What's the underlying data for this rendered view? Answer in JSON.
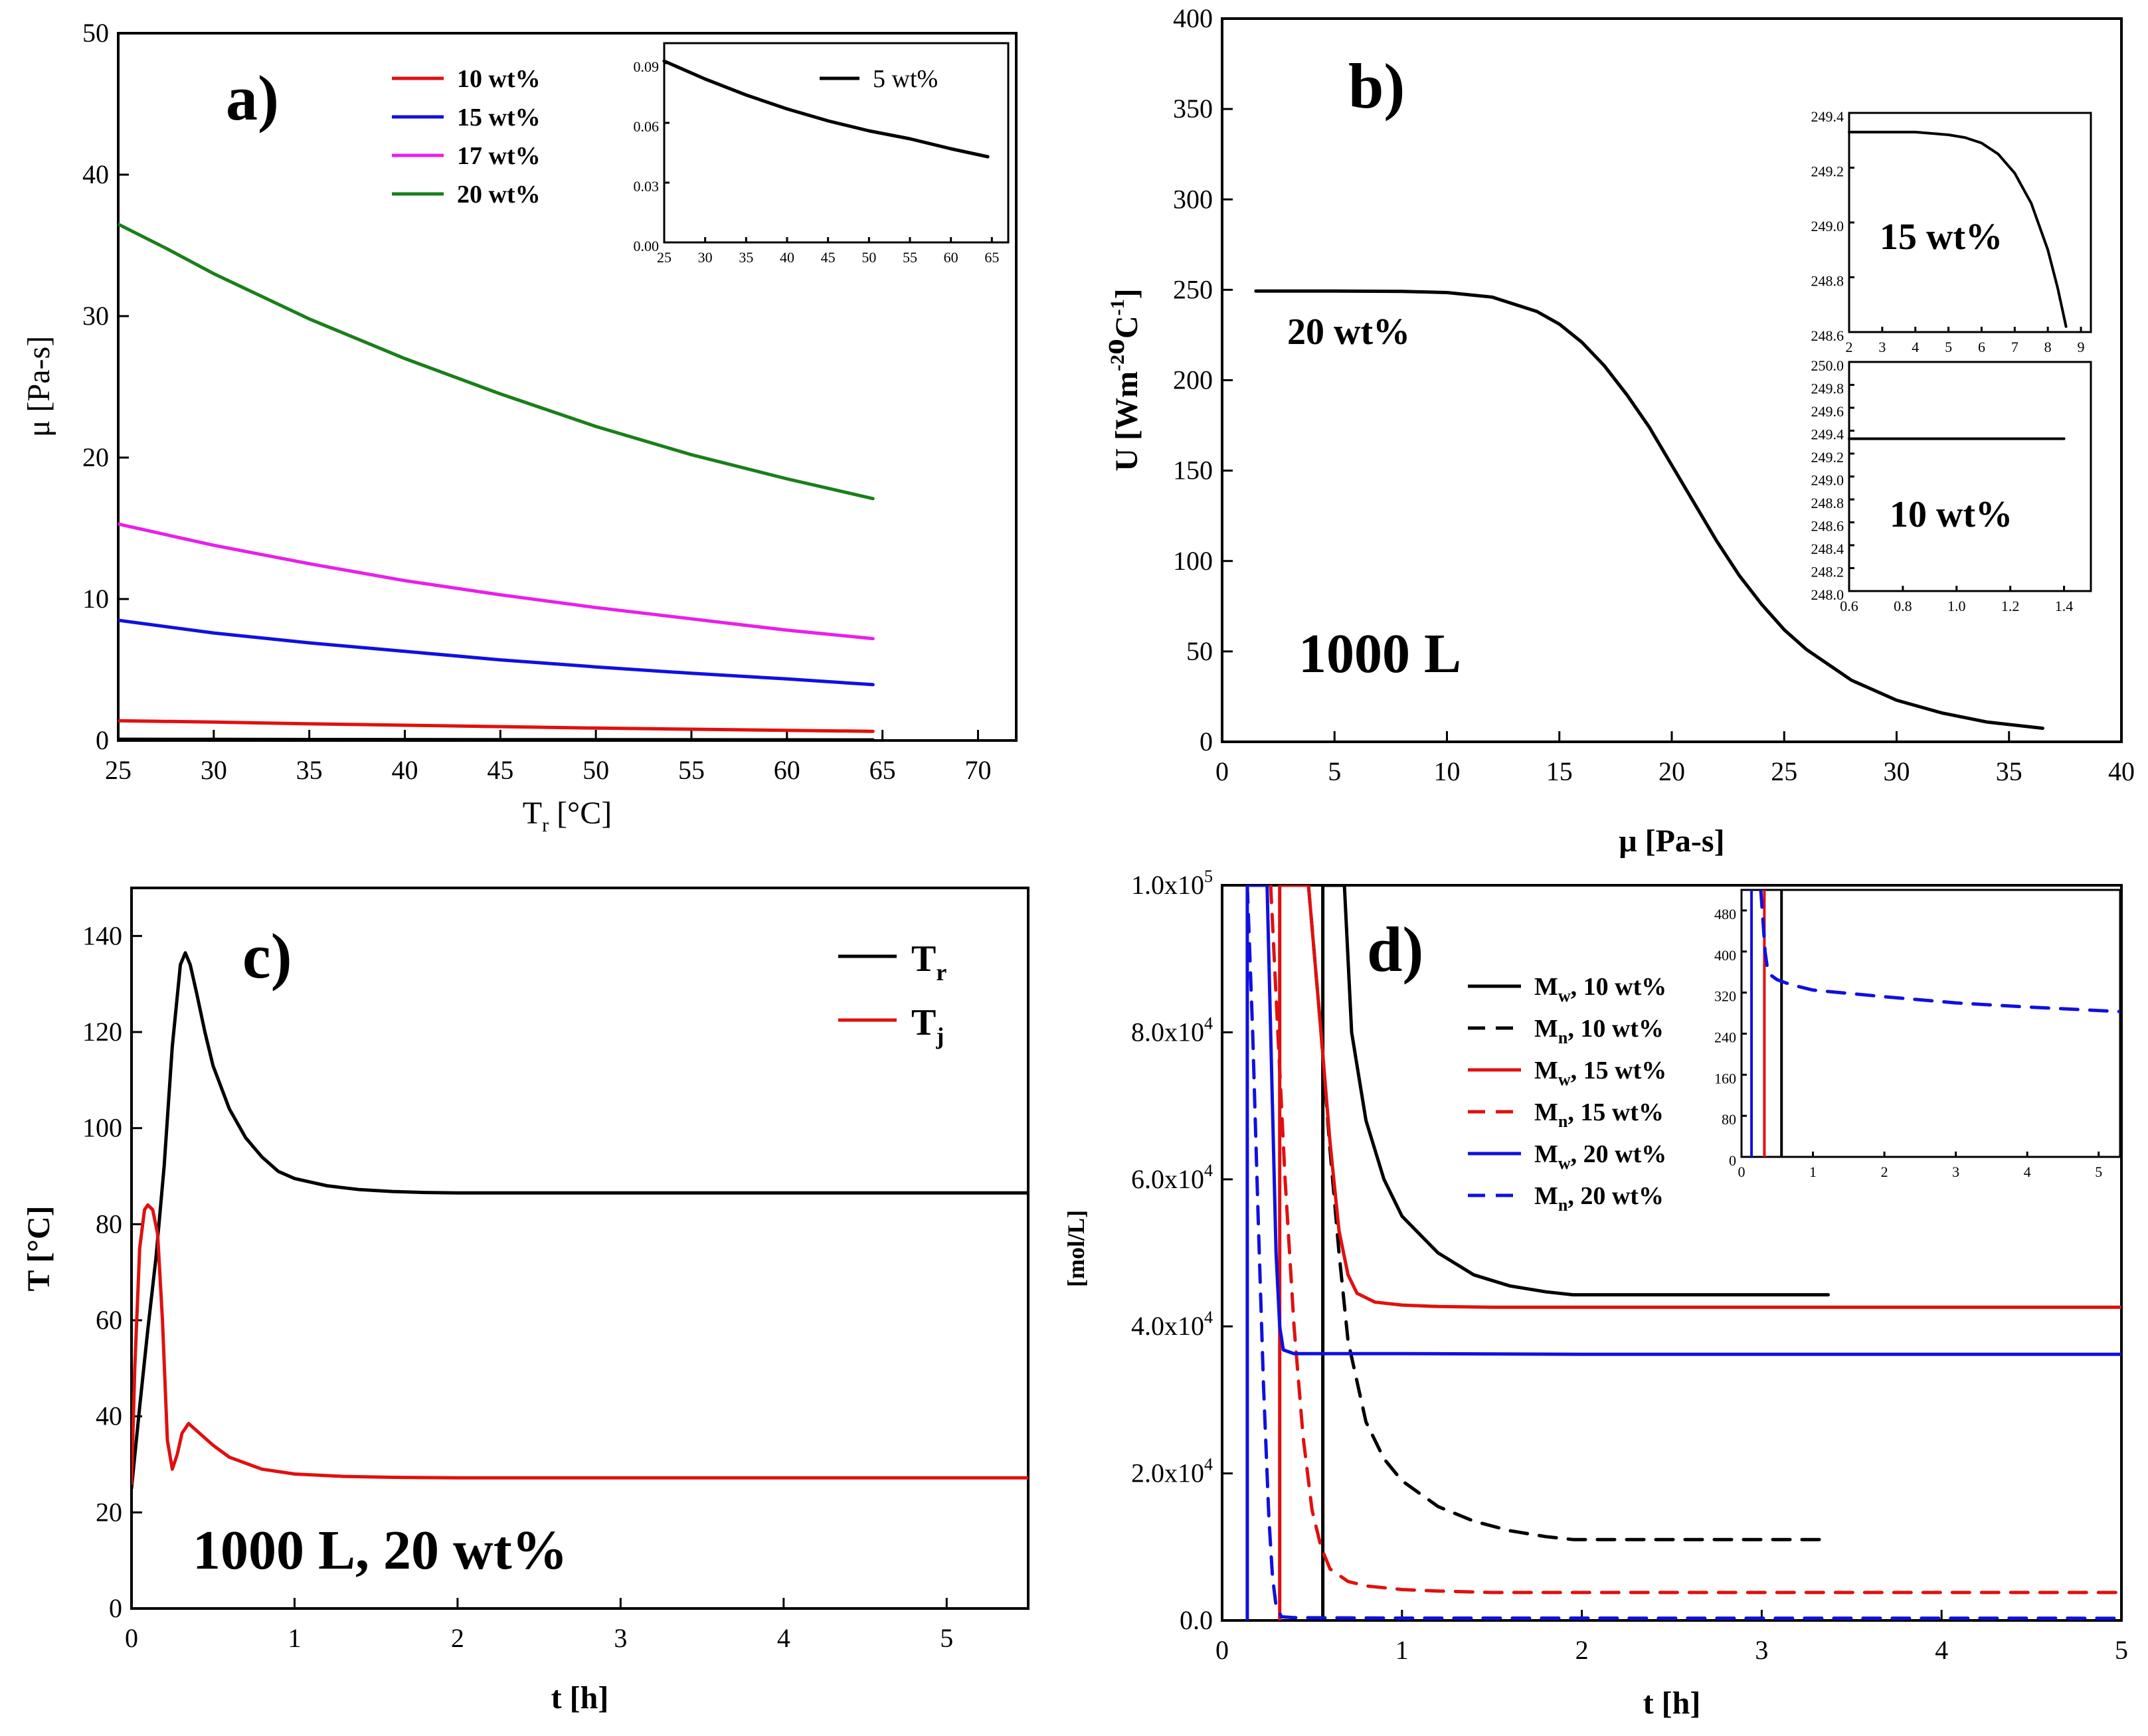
{
  "chart_data": [
    {
      "panel": "a)",
      "type": "line",
      "xlabel_main": "T",
      "xlabel_sub": "r",
      "xlabel_unit": " [°C]",
      "ylabel": "μ [Pa-s]",
      "xlim": [
        25,
        72
      ],
      "ylim": [
        0,
        50
      ],
      "xticks": [
        25,
        30,
        35,
        40,
        45,
        50,
        55,
        60,
        65,
        70
      ],
      "yticks": [
        0,
        10,
        20,
        30,
        40,
        50
      ],
      "series": [
        {
          "name": "10 wt%",
          "color": "#e01010",
          "x": [
            25,
            30,
            35,
            40,
            45,
            50,
            55,
            60,
            64.5
          ],
          "y": [
            1.4,
            1.3,
            1.18,
            1.08,
            0.98,
            0.88,
            0.8,
            0.72,
            0.65
          ]
        },
        {
          "name": "15 wt%",
          "color": "#1010e0",
          "x": [
            25,
            30,
            35,
            40,
            45,
            50,
            55,
            60,
            64.5
          ],
          "y": [
            8.5,
            7.6,
            6.9,
            6.3,
            5.7,
            5.2,
            4.75,
            4.35,
            3.95
          ]
        },
        {
          "name": "17 wt%",
          "color": "#e820e8",
          "x": [
            25,
            30,
            35,
            40,
            45,
            50,
            55,
            60,
            64.5
          ],
          "y": [
            15.3,
            13.8,
            12.5,
            11.3,
            10.3,
            9.4,
            8.6,
            7.8,
            7.2
          ]
        },
        {
          "name": "20 wt%",
          "color": "#1a7f1a",
          "x": [
            25,
            27.5,
            30,
            35,
            40,
            45,
            50,
            55,
            60,
            64.5
          ],
          "y": [
            36.5,
            34.8,
            33.0,
            29.8,
            27.0,
            24.5,
            22.2,
            20.2,
            18.5,
            17.1
          ]
        },
        {
          "name": "5 wt% (main)",
          "legend": false,
          "color": "#000000",
          "x": [
            25,
            30,
            35,
            40,
            45,
            50,
            55,
            60,
            64.5
          ],
          "y": [
            0.09,
            0.08,
            0.07,
            0.065,
            0.06,
            0.055,
            0.05,
            0.046,
            0.042
          ]
        }
      ],
      "inset": {
        "legend": "5 wt%",
        "xlim": [
          25,
          67
        ],
        "ylim": [
          0,
          0.1
        ],
        "xticks": [
          25,
          30,
          35,
          40,
          45,
          50,
          55,
          60,
          65
        ],
        "yticks": [
          "0.00",
          "0.03",
          "0.06",
          "0.09"
        ],
        "ytick_values": [
          0,
          0.03,
          0.06,
          0.09
        ],
        "series": {
          "name": "5 wt%",
          "color": "#000000",
          "x": [
            25,
            30,
            35,
            40,
            45,
            50,
            55,
            60,
            64.5
          ],
          "y": [
            0.091,
            0.082,
            0.074,
            0.067,
            0.061,
            0.056,
            0.052,
            0.047,
            0.043
          ]
        }
      }
    },
    {
      "panel": "b)",
      "type": "line",
      "xlabel": "μ [Pa-s]",
      "ylabel_main": "U [Wm",
      "ylabel_sup1": "-2",
      "ylabel_mid": "o",
      "ylabel_c": "C",
      "ylabel_sup2": "-1",
      "ylabel_end": "]",
      "xlim": [
        0,
        40
      ],
      "ylim": [
        0,
        400
      ],
      "xticks": [
        0,
        5,
        10,
        15,
        20,
        25,
        30,
        35,
        40
      ],
      "yticks": [
        0,
        50,
        100,
        150,
        200,
        250,
        300,
        350,
        400
      ],
      "annotation_series": "20 wt%",
      "annotation_volume": "1000 L",
      "series": [
        {
          "name": "20 wt%",
          "color": "#000000",
          "x": [
            1.5,
            5,
            8,
            10,
            12,
            14,
            15,
            16,
            17,
            18,
            19,
            20,
            21,
            22,
            23,
            24,
            25,
            26,
            28,
            30,
            32,
            34,
            36.5
          ],
          "y": [
            249.3,
            249.3,
            249.1,
            248.5,
            246,
            238,
            231,
            221,
            208,
            192,
            174,
            153,
            132,
            111,
            92,
            76,
            62,
            51,
            34,
            23,
            16,
            11,
            7.5
          ]
        }
      ],
      "inset_top": {
        "label": "15 wt%",
        "xlim": [
          2,
          9.3
        ],
        "ylim": [
          248.6,
          249.4
        ],
        "xticks": [
          2,
          3,
          4,
          5,
          6,
          7,
          8,
          9
        ],
        "yticks": [
          "248.6",
          "248.8",
          "249.0",
          "249.2",
          "249.4"
        ],
        "ytick_values": [
          248.6,
          248.8,
          249.0,
          249.2,
          249.4
        ],
        "series": {
          "x": [
            2,
            3,
            4,
            5,
            5.5,
            6,
            6.5,
            7,
            7.5,
            8,
            8.3,
            8.55
          ],
          "y": [
            249.33,
            249.33,
            249.33,
            249.32,
            249.31,
            249.29,
            249.25,
            249.18,
            249.07,
            248.9,
            248.76,
            248.62
          ]
        }
      },
      "inset_bottom": {
        "label": "10 wt%",
        "xlim": [
          0.6,
          1.5
        ],
        "ylim": [
          248.0,
          250.0
        ],
        "xticks": [
          "0.6",
          "0.8",
          "1.0",
          "1.2",
          "1.4"
        ],
        "xtick_values": [
          0.6,
          0.8,
          1.0,
          1.2,
          1.4
        ],
        "yticks": [
          "248.0",
          "248.2",
          "248.4",
          "248.6",
          "248.8",
          "249.0",
          "249.2",
          "249.4",
          "249.6",
          "249.8",
          "250.0"
        ],
        "ytick_values": [
          248.0,
          248.2,
          248.4,
          248.6,
          248.8,
          249.0,
          249.2,
          249.4,
          249.6,
          249.8,
          250.0
        ],
        "series": {
          "x": [
            0.6,
            1.4
          ],
          "y": [
            249.33,
            249.33
          ]
        }
      }
    },
    {
      "panel": "c)",
      "type": "line",
      "xlabel": "t [h]",
      "ylabel": "T [°C]",
      "xlim": [
        0,
        5.5
      ],
      "ylim": [
        0,
        150
      ],
      "xticks": [
        0,
        1,
        2,
        3,
        4,
        5
      ],
      "yticks": [
        0,
        20,
        40,
        60,
        80,
        100,
        120,
        140
      ],
      "annotation": "1000 L,  20 wt%",
      "series": [
        {
          "name": "T",
          "sub": "r",
          "color": "#000000",
          "x": [
            0,
            0.05,
            0.1,
            0.15,
            0.2,
            0.25,
            0.3,
            0.33,
            0.36,
            0.4,
            0.45,
            0.5,
            0.6,
            0.7,
            0.8,
            0.9,
            1.0,
            1.2,
            1.4,
            1.6,
            1.8,
            2.0,
            3.0,
            4.0,
            5.5
          ],
          "y": [
            25,
            42,
            58,
            73,
            92,
            117,
            134,
            136.5,
            134,
            128,
            120,
            113,
            104,
            98,
            94,
            91,
            89.5,
            88,
            87.2,
            86.8,
            86.6,
            86.5,
            86.5,
            86.5,
            86.5
          ]
        },
        {
          "name": "T",
          "sub": "j",
          "color": "#e01010",
          "x": [
            0,
            0.02,
            0.05,
            0.08,
            0.1,
            0.13,
            0.16,
            0.19,
            0.22,
            0.25,
            0.28,
            0.31,
            0.35,
            0.4,
            0.5,
            0.6,
            0.8,
            1.0,
            1.3,
            1.6,
            2.0,
            3.0,
            4.0,
            5.5
          ],
          "y": [
            26,
            50,
            75,
            83,
            84,
            83,
            78,
            60,
            35,
            29,
            32,
            36.5,
            38.5,
            37,
            34,
            31.5,
            29,
            28,
            27.5,
            27.3,
            27.2,
            27.2,
            27.2,
            27.2
          ]
        }
      ]
    },
    {
      "panel": "d)",
      "type": "line",
      "xlabel": "t [h]",
      "ylabel": "[mol/L]",
      "xlim": [
        0,
        5
      ],
      "ylim": [
        0,
        100000
      ],
      "xticks": [
        0,
        1,
        2,
        3,
        4,
        5
      ],
      "ytick_values": [
        0,
        20000,
        40000,
        60000,
        80000,
        100000
      ],
      "yticks": [
        {
          "mant": "0.0",
          "exp": ""
        },
        {
          "mant": "2.0x10",
          "exp": "4"
        },
        {
          "mant": "4.0x10",
          "exp": "4"
        },
        {
          "mant": "6.0x10",
          "exp": "4"
        },
        {
          "mant": "8.0x10",
          "exp": "4"
        },
        {
          "mant": "1.0x10",
          "exp": "5"
        }
      ],
      "series": [
        {
          "name": "M",
          "sub": "w",
          "suffix": ", 10 wt%",
          "color": "#000000",
          "dash": false,
          "x": [
            0.56,
            0.56,
            0.68,
            0.72,
            0.8,
            0.9,
            1.0,
            1.2,
            1.4,
            1.6,
            1.8,
            1.95,
            3.37
          ],
          "y": [
            0,
            100000,
            100000,
            80000,
            68000,
            60000,
            55000,
            50000,
            47000,
            45500,
            44700,
            44300,
            44300
          ]
        },
        {
          "name": "M",
          "sub": "n",
          "suffix": ", 10 wt%",
          "color": "#000000",
          "dash": true,
          "x": [
            0.48,
            0.55,
            0.6,
            0.65,
            0.7,
            0.8,
            0.9,
            1.0,
            1.2,
            1.4,
            1.6,
            1.8,
            1.95,
            3.37
          ],
          "y": [
            100000,
            80000,
            64000,
            50000,
            38000,
            27000,
            22000,
            19000,
            15500,
            13500,
            12200,
            11400,
            11000,
            11000
          ]
        },
        {
          "name": "M",
          "sub": "w",
          "suffix": ", 15 wt%",
          "color": "#e01010",
          "dash": false,
          "x": [
            0.32,
            0.32,
            0.48,
            0.55,
            0.6,
            0.65,
            0.7,
            0.75,
            0.85,
            1.0,
            1.2,
            1.5,
            2.0,
            5.0
          ],
          "y": [
            0,
            100000,
            100000,
            80000,
            65000,
            53000,
            47000,
            44500,
            43300,
            42900,
            42700,
            42600,
            42600,
            42600
          ]
        },
        {
          "name": "M",
          "sub": "n",
          "suffix": ", 15 wt%",
          "color": "#e01010",
          "dash": true,
          "x": [
            0.27,
            0.3,
            0.35,
            0.4,
            0.45,
            0.5,
            0.55,
            0.6,
            0.7,
            0.8,
            1.0,
            1.2,
            1.5,
            2.0,
            5.0
          ],
          "y": [
            100000,
            85000,
            60000,
            40000,
            25000,
            15000,
            10000,
            7000,
            5300,
            4700,
            4200,
            4000,
            3800,
            3800,
            3800
          ]
        },
        {
          "name": "M",
          "sub": "w",
          "suffix": ", 20 wt%",
          "color": "#1010e0",
          "dash": false,
          "x": [
            0.14,
            0.14,
            0.25,
            0.28,
            0.3,
            0.32,
            0.34,
            0.4,
            0.6,
            1.0,
            2.0,
            5.0
          ],
          "y": [
            0,
            100000,
            100000,
            70000,
            50000,
            40000,
            36800,
            36300,
            36300,
            36300,
            36200,
            36200
          ]
        },
        {
          "name": "M",
          "sub": "n",
          "suffix": ", 20 wt%",
          "color": "#1010e0",
          "dash": true,
          "x": [
            0.14,
            0.17,
            0.2,
            0.23,
            0.26,
            0.28,
            0.3,
            0.33,
            0.4,
            1.0,
            5.0
          ],
          "y": [
            100000,
            80000,
            55000,
            32000,
            14000,
            6000,
            2000,
            500,
            380,
            320,
            300
          ]
        }
      ],
      "inset": {
        "xlim": [
          0,
          5.3
        ],
        "ylim": [
          0,
          520
        ],
        "xticks": [
          0,
          1,
          2,
          3,
          4,
          5
        ],
        "yticks": [
          0,
          80,
          160,
          240,
          320,
          400,
          480
        ],
        "vlines": [
          {
            "x": 0.14,
            "color": "#1010e0"
          },
          {
            "x": 0.32,
            "color": "#e01010"
          },
          {
            "x": 0.56,
            "color": "#000000"
          }
        ],
        "series": {
          "color": "#1010e0",
          "x": [
            0.27,
            0.3,
            0.33,
            0.36,
            0.4,
            0.5,
            0.7,
            1.0,
            2.0,
            3.0,
            4.0,
            5.3
          ],
          "y": [
            520,
            460,
            400,
            370,
            355,
            345,
            335,
            325,
            312,
            300,
            292,
            283
          ]
        }
      }
    }
  ]
}
